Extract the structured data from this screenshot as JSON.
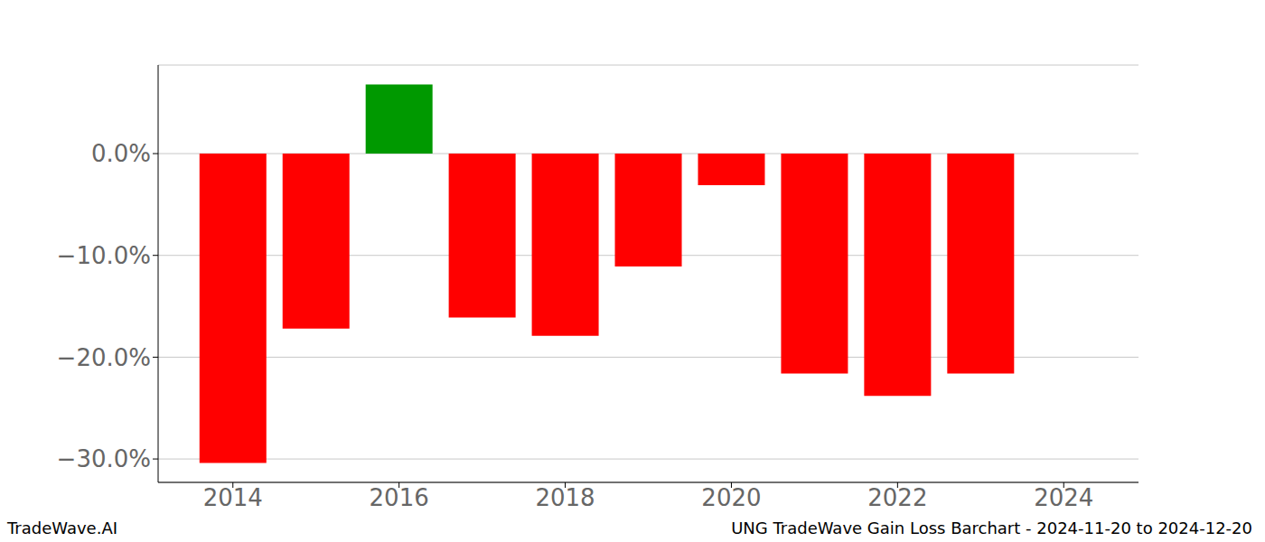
{
  "chart_data": {
    "type": "bar",
    "x": [
      2014,
      2015,
      2016,
      2017,
      2018,
      2019,
      2020,
      2021,
      2022,
      2023
    ],
    "values": [
      -30.4,
      -17.2,
      6.8,
      -16.1,
      -17.9,
      -11.1,
      -3.1,
      -21.6,
      -23.8,
      -21.6
    ],
    "colors": [
      "#ff0000",
      "#ff0000",
      "#009900",
      "#ff0000",
      "#ff0000",
      "#ff0000",
      "#ff0000",
      "#ff0000",
      "#ff0000",
      "#ff0000"
    ],
    "xlim": [
      2013.1,
      2024.9
    ],
    "xticks": [
      2014,
      2016,
      2018,
      2020,
      2022,
      2024
    ],
    "ylim": [
      -32.3,
      8.7
    ],
    "yticks": [
      {
        "value": -30,
        "label": "−30.0%"
      },
      {
        "value": -20,
        "label": "−20.0%"
      },
      {
        "value": -10,
        "label": "−10.0%"
      },
      {
        "value": 0,
        "label": "0.0%"
      }
    ],
    "grid": true,
    "annotations": [
      "TradeWave.AI",
      "UNG TradeWave Gain Loss Barchart - 2024-11-20 to 2024-12-20"
    ]
  }
}
